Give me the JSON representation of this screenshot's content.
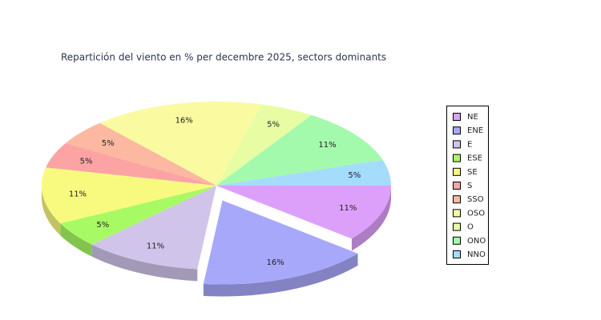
{
  "chart_data": {
    "type": "pie3d",
    "title": "Repartición del viento en % per decembre 2025, sectors dominants",
    "categories": [
      "NE",
      "ENE",
      "E",
      "ESE",
      "SE",
      "S",
      "SSO",
      "OSO",
      "O",
      "ONO",
      "NNO"
    ],
    "values": [
      11,
      16,
      11,
      5,
      11,
      5,
      5,
      16,
      5,
      11,
      5
    ],
    "value_labels": [
      "11%",
      "16%",
      "11%",
      "5%",
      "11%",
      "5%",
      "5%",
      "16%",
      "5%",
      "11%",
      "5%"
    ],
    "colors": [
      "#dda0fa",
      "#a8a8fa",
      "#d0c4ea",
      "#a8fa64",
      "#f8fa80",
      "#fca4a4",
      "#fcb8a0",
      "#fafaa0",
      "#e8fca4",
      "#a4faac",
      "#a4dcfc"
    ],
    "exploded": "ENE",
    "legend": "right"
  }
}
